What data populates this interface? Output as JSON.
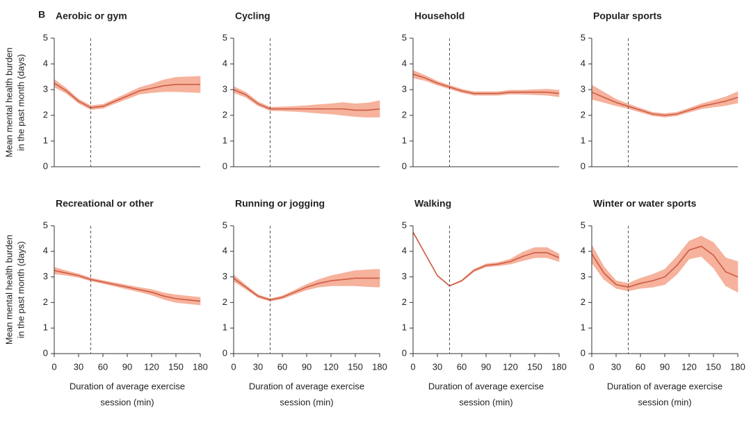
{
  "figure_label": "B",
  "chart_data": [
    {
      "type": "line",
      "title": "Aerobic or gym",
      "ylabel": [
        "Mean mental health burden",
        "in the past month (days)"
      ],
      "x": [
        0,
        15,
        30,
        45,
        60,
        75,
        90,
        105,
        120,
        135,
        150,
        165,
        180
      ],
      "values": [
        3.25,
        2.95,
        2.55,
        2.3,
        2.35,
        2.55,
        2.75,
        2.95,
        3.05,
        3.15,
        3.2,
        3.2,
        3.2
      ],
      "lower": [
        3.1,
        2.85,
        2.47,
        2.22,
        2.27,
        2.46,
        2.64,
        2.82,
        2.88,
        2.92,
        2.92,
        2.9,
        2.88
      ],
      "upper": [
        3.4,
        3.05,
        2.63,
        2.38,
        2.43,
        2.64,
        2.86,
        3.08,
        3.22,
        3.38,
        3.48,
        3.5,
        3.52
      ],
      "vline": 45,
      "xlim": [
        0,
        180
      ],
      "ylim": [
        0,
        5
      ],
      "yticks": [
        0,
        1,
        2,
        3,
        4,
        5
      ],
      "color": "#cd5a43",
      "band_color": "#f6b29c"
    },
    {
      "type": "line",
      "title": "Cycling",
      "x": [
        0,
        15,
        30,
        45,
        60,
        75,
        90,
        105,
        120,
        135,
        150,
        165,
        180
      ],
      "values": [
        3.0,
        2.8,
        2.45,
        2.25,
        2.25,
        2.25,
        2.25,
        2.25,
        2.25,
        2.25,
        2.2,
        2.2,
        2.25
      ],
      "lower": [
        2.88,
        2.7,
        2.37,
        2.18,
        2.17,
        2.15,
        2.12,
        2.08,
        2.05,
        2.0,
        1.95,
        1.92,
        1.93
      ],
      "upper": [
        3.12,
        2.9,
        2.53,
        2.32,
        2.33,
        2.35,
        2.38,
        2.42,
        2.45,
        2.5,
        2.45,
        2.48,
        2.57
      ],
      "vline": 45,
      "xlim": [
        0,
        180
      ],
      "ylim": [
        0,
        5
      ],
      "yticks": [
        0,
        1,
        2,
        3,
        4,
        5
      ],
      "color": "#cd5a43",
      "band_color": "#f6b29c"
    },
    {
      "type": "line",
      "title": "Household",
      "x": [
        0,
        15,
        30,
        45,
        60,
        75,
        90,
        105,
        120,
        135,
        150,
        165,
        180
      ],
      "values": [
        3.6,
        3.45,
        3.25,
        3.1,
        2.95,
        2.85,
        2.85,
        2.85,
        2.9,
        2.9,
        2.9,
        2.9,
        2.85
      ],
      "lower": [
        3.45,
        3.35,
        3.17,
        3.03,
        2.88,
        2.78,
        2.78,
        2.78,
        2.82,
        2.82,
        2.8,
        2.78,
        2.72
      ],
      "upper": [
        3.75,
        3.55,
        3.33,
        3.17,
        3.02,
        2.92,
        2.92,
        2.92,
        2.98,
        2.98,
        3.0,
        3.02,
        2.98
      ],
      "vline": 45,
      "xlim": [
        0,
        180
      ],
      "ylim": [
        0,
        5
      ],
      "yticks": [
        0,
        1,
        2,
        3,
        4,
        5
      ],
      "color": "#cd5a43",
      "band_color": "#f6b29c"
    },
    {
      "type": "line",
      "title": "Popular sports",
      "x": [
        0,
        15,
        30,
        45,
        60,
        75,
        90,
        105,
        120,
        135,
        150,
        165,
        180
      ],
      "values": [
        2.9,
        2.7,
        2.5,
        2.35,
        2.2,
        2.05,
        2.0,
        2.05,
        2.2,
        2.35,
        2.45,
        2.55,
        2.7
      ],
      "lower": [
        2.62,
        2.5,
        2.37,
        2.26,
        2.12,
        1.98,
        1.93,
        1.98,
        2.12,
        2.25,
        2.32,
        2.38,
        2.48
      ],
      "upper": [
        3.18,
        2.9,
        2.63,
        2.44,
        2.28,
        2.12,
        2.07,
        2.12,
        2.28,
        2.45,
        2.58,
        2.72,
        2.92
      ],
      "vline": 45,
      "xlim": [
        0,
        180
      ],
      "ylim": [
        0,
        5
      ],
      "yticks": [
        0,
        1,
        2,
        3,
        4,
        5
      ],
      "color": "#cd5a43",
      "band_color": "#f6b29c"
    },
    {
      "type": "line",
      "title": "Recreational or other",
      "ylabel": [
        "Mean mental health burden",
        "in the past month (days)"
      ],
      "xlabel": [
        "Duration of average exercise",
        "session (min)"
      ],
      "x": [
        0,
        15,
        30,
        45,
        60,
        75,
        90,
        105,
        120,
        135,
        150,
        165,
        180
      ],
      "values": [
        3.25,
        3.15,
        3.05,
        2.9,
        2.8,
        2.7,
        2.6,
        2.5,
        2.4,
        2.25,
        2.15,
        2.1,
        2.05
      ],
      "lower": [
        3.12,
        3.06,
        2.98,
        2.84,
        2.74,
        2.63,
        2.52,
        2.41,
        2.29,
        2.12,
        2.0,
        1.95,
        1.9
      ],
      "upper": [
        3.38,
        3.24,
        3.12,
        2.96,
        2.86,
        2.77,
        2.68,
        2.59,
        2.51,
        2.38,
        2.3,
        2.25,
        2.2
      ],
      "vline": 45,
      "xlim": [
        0,
        180
      ],
      "ylim": [
        0,
        5
      ],
      "yticks": [
        0,
        1,
        2,
        3,
        4,
        5
      ],
      "xticks": [
        0,
        30,
        60,
        90,
        120,
        150,
        180
      ],
      "color": "#cd5a43",
      "band_color": "#f6b29c"
    },
    {
      "type": "line",
      "title": "Running or jogging",
      "xlabel": [
        "Duration of average exercise",
        "session (min)"
      ],
      "x": [
        0,
        15,
        30,
        45,
        60,
        75,
        90,
        105,
        120,
        135,
        150,
        165,
        180
      ],
      "values": [
        2.95,
        2.6,
        2.25,
        2.1,
        2.2,
        2.4,
        2.6,
        2.75,
        2.85,
        2.9,
        2.95,
        2.95,
        2.95
      ],
      "lower": [
        2.82,
        2.52,
        2.19,
        2.05,
        2.14,
        2.32,
        2.49,
        2.6,
        2.65,
        2.65,
        2.65,
        2.62,
        2.6
      ],
      "upper": [
        3.08,
        2.68,
        2.31,
        2.15,
        2.26,
        2.48,
        2.71,
        2.9,
        3.05,
        3.15,
        3.25,
        3.28,
        3.3
      ],
      "vline": 45,
      "xlim": [
        0,
        180
      ],
      "ylim": [
        0,
        5
      ],
      "yticks": [
        0,
        1,
        2,
        3,
        4,
        5
      ],
      "xticks": [
        0,
        30,
        60,
        90,
        120,
        150,
        180
      ],
      "color": "#cd5a43",
      "band_color": "#f6b29c"
    },
    {
      "type": "line",
      "title": "Walking",
      "xlabel": [
        "Duration of average exercise",
        "session (min)"
      ],
      "x": [
        0,
        15,
        30,
        45,
        60,
        75,
        90,
        105,
        120,
        135,
        150,
        165,
        180
      ],
      "values": [
        4.75,
        3.9,
        3.05,
        2.65,
        2.85,
        3.25,
        3.45,
        3.5,
        3.6,
        3.8,
        3.95,
        3.95,
        3.75
      ],
      "lower": [
        4.72,
        3.88,
        3.03,
        2.63,
        2.82,
        3.2,
        3.39,
        3.43,
        3.5,
        3.63,
        3.75,
        3.75,
        3.6
      ],
      "upper": [
        4.78,
        3.92,
        3.07,
        2.67,
        2.88,
        3.3,
        3.51,
        3.57,
        3.7,
        3.97,
        4.15,
        4.15,
        3.9
      ],
      "vline": 45,
      "xlim": [
        0,
        180
      ],
      "ylim": [
        0,
        5
      ],
      "yticks": [
        0,
        1,
        2,
        3,
        4,
        5
      ],
      "xticks": [
        0,
        30,
        60,
        90,
        120,
        150,
        180
      ],
      "color": "#cd5a43",
      "band_color": "#f6b29c"
    },
    {
      "type": "line",
      "title": "Winter or water sports",
      "xlabel": [
        "Duration of average exercise",
        "session (min)"
      ],
      "x": [
        0,
        15,
        30,
        45,
        60,
        75,
        90,
        105,
        120,
        135,
        150,
        165,
        180
      ],
      "values": [
        3.9,
        3.15,
        2.7,
        2.6,
        2.75,
        2.85,
        3.0,
        3.45,
        4.05,
        4.2,
        3.85,
        3.2,
        3.0
      ],
      "lower": [
        3.55,
        2.9,
        2.55,
        2.45,
        2.55,
        2.6,
        2.7,
        3.1,
        3.7,
        3.8,
        3.35,
        2.65,
        2.4
      ],
      "upper": [
        4.25,
        3.4,
        2.85,
        2.75,
        2.95,
        3.1,
        3.3,
        3.8,
        4.4,
        4.6,
        4.35,
        3.75,
        3.6
      ],
      "vline": 45,
      "xlim": [
        0,
        180
      ],
      "ylim": [
        0,
        5
      ],
      "yticks": [
        0,
        1,
        2,
        3,
        4,
        5
      ],
      "xticks": [
        0,
        30,
        60,
        90,
        120,
        150,
        180
      ],
      "color": "#cd5a43",
      "band_color": "#f6b29c"
    }
  ]
}
